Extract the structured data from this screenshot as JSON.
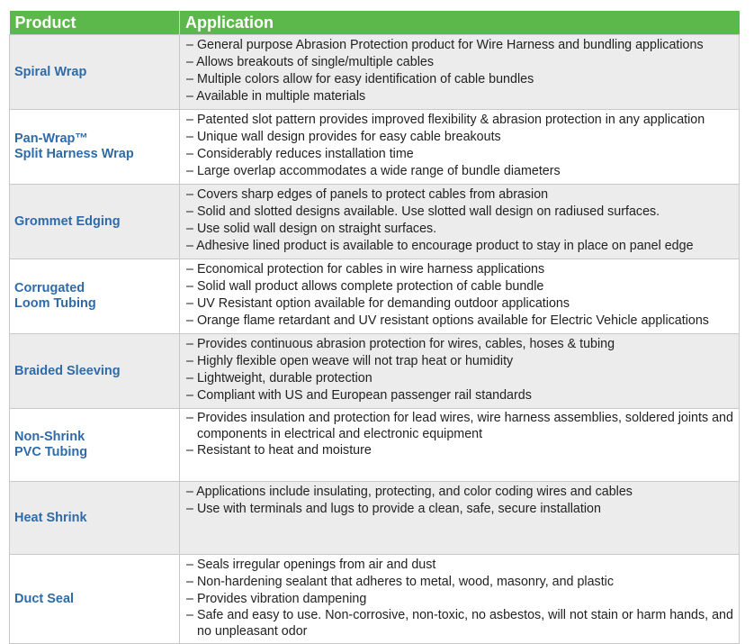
{
  "header": {
    "product": "Product",
    "application": "Application"
  },
  "rows": [
    {
      "product": [
        "Spiral Wrap"
      ],
      "items": [
        "General purpose Abrasion Protection product for Wire Harness and bundling applications",
        "Allows breakouts of single/multiple cables",
        "Multiple colors allow for easy identification of cable bundles",
        "Available in multiple materials"
      ]
    },
    {
      "product": [
        "Pan-Wrap™",
        "Split Harness Wrap"
      ],
      "items": [
        "Patented slot pattern provides improved flexibility & abrasion protection in any application",
        "Unique wall design provides for easy cable breakouts",
        "Considerably reduces installation time",
        "Large overlap accommodates a wide range of bundle diameters"
      ]
    },
    {
      "product": [
        "Grommet Edging"
      ],
      "items": [
        "Covers sharp edges of panels to protect cables from abrasion",
        "Solid and slotted designs available. Use slotted wall design on radiused surfaces.",
        "Use solid wall design on straight surfaces.",
        "Adhesive lined product is available to encourage product to stay in place on panel edge"
      ]
    },
    {
      "product": [
        "Corrugated",
        "Loom Tubing"
      ],
      "items": [
        "Economical protection for cables in wire harness applications",
        "Solid wall product allows complete protection of cable bundle",
        "UV Resistant option available for demanding outdoor applications",
        "Orange flame retardant and UV resistant options available for Electric Vehicle applications"
      ]
    },
    {
      "product": [
        "Braided Sleeving"
      ],
      "items": [
        "Provides continuous abrasion protection for wires, cables, hoses & tubing",
        "Highly flexible open weave will not trap heat or humidity",
        "Lightweight, durable protection",
        "Compliant with US and European passenger rail standards"
      ]
    },
    {
      "product": [
        "Non-Shrink",
        "PVC Tubing"
      ],
      "items": [
        "Provides insulation and protection for lead wires, wire harness assemblies, soldered joints and components in electrical and electronic equipment",
        "Resistant to heat and moisture"
      ]
    },
    {
      "product": [
        "Heat Shrink"
      ],
      "items": [
        "Applications include insulating, protecting, and color coding wires and cables",
        "Use with terminals and lugs to provide a clean, safe, secure installation"
      ]
    },
    {
      "product": [
        "Duct Seal"
      ],
      "items": [
        "Seals irregular openings from air and dust",
        "Non-hardening sealant that adheres to metal, wood, masonry, and plastic",
        "Provides vibration dampening",
        "Safe and easy to use. Non-corrosive, non-toxic, no asbestos, will not stain or harm hands, and no unpleasant odor"
      ]
    }
  ],
  "colors": {
    "header_bg": "#5cb84a",
    "product_text": "#2e6ba8",
    "alt_row": "#ececec"
  }
}
